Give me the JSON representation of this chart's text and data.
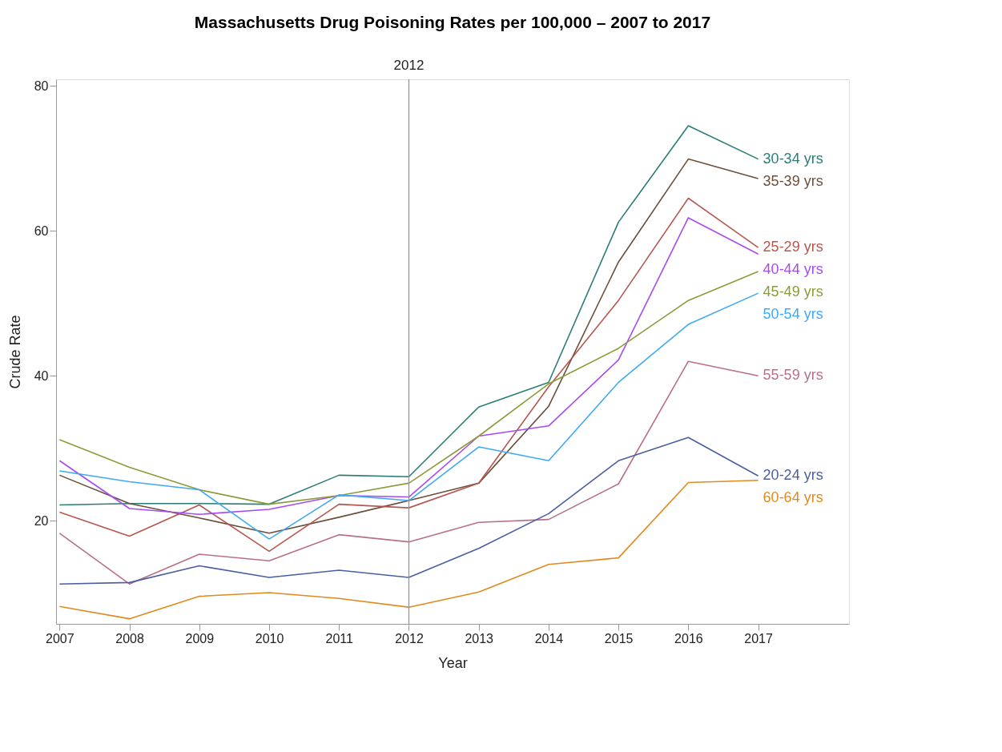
{
  "chart_data": {
    "type": "line",
    "title": "Massachusetts Drug Poisoning Rates per 100,000 – 2007 to 2017",
    "xlabel": "Year",
    "ylabel": "Crude Rate",
    "x": [
      2007,
      2008,
      2009,
      2010,
      2011,
      2012,
      2013,
      2014,
      2015,
      2016,
      2017
    ],
    "xlim": [
      2006.95,
      2018.3
    ],
    "xticks": [
      2007,
      2008,
      2009,
      2010,
      2011,
      2012,
      2013,
      2014,
      2015,
      2016,
      2017
    ],
    "ylim": [
      5.8,
      80.9
    ],
    "yticks": [
      20,
      40,
      60,
      80
    ],
    "grid": false,
    "legend": false,
    "marker": "none",
    "line_style": "solid",
    "ref_lines": [
      {
        "axis": "x",
        "value": 2012,
        "label": "2012",
        "color": "#909090"
      }
    ],
    "series": [
      {
        "name": "30-34 yrs",
        "color": "#2a7d75",
        "values": [
          22.2,
          22.4,
          22.4,
          22.3,
          26.3,
          26.1,
          35.7,
          39.1,
          61.2,
          74.5,
          69.9
        ]
      },
      {
        "name": "35-39 yrs",
        "color": "#6b4f3a",
        "values": [
          26.3,
          22.4,
          20.4,
          18.3,
          20.5,
          22.8,
          25.2,
          35.8,
          55.7,
          69.9,
          67.2
        ]
      },
      {
        "name": "25-29 yrs",
        "color": "#b5574e",
        "values": [
          21.2,
          17.9,
          22.2,
          15.8,
          22.3,
          21.8,
          25.2,
          38.5,
          50.4,
          64.5,
          57.7
        ]
      },
      {
        "name": "40-44 yrs",
        "color": "#a64bf4",
        "values": [
          28.3,
          21.7,
          20.9,
          21.6,
          23.5,
          23.3,
          31.7,
          33.1,
          42.2,
          61.8,
          56.8
        ]
      },
      {
        "name": "45-49 yrs",
        "color": "#8c9b3a",
        "values": [
          31.2,
          27.4,
          24.3,
          22.3,
          23.5,
          25.2,
          31.7,
          38.9,
          43.8,
          50.4,
          54.4
        ]
      },
      {
        "name": "50-54 yrs",
        "color": "#3fa9f5",
        "values": [
          26.9,
          25.4,
          24.3,
          17.5,
          23.6,
          22.8,
          30.2,
          28.3,
          39.1,
          47.1,
          51.4
        ]
      },
      {
        "name": "55-59 yrs",
        "color": "#b8708a",
        "values": [
          18.3,
          11.3,
          15.4,
          14.5,
          18.1,
          17.1,
          19.8,
          20.2,
          25.1,
          42.0,
          40.0
        ]
      },
      {
        "name": "20-24 yrs",
        "color": "#4b5fa0",
        "values": [
          11.3,
          11.5,
          13.8,
          12.2,
          13.2,
          12.2,
          16.2,
          21.0,
          28.3,
          31.5,
          26.2
        ]
      },
      {
        "name": "60-64 yrs",
        "color": "#e08a1e",
        "values": [
          8.2,
          6.5,
          9.6,
          10.1,
          9.3,
          8.1,
          10.2,
          14.0,
          14.9,
          25.3,
          25.6
        ]
      }
    ]
  }
}
